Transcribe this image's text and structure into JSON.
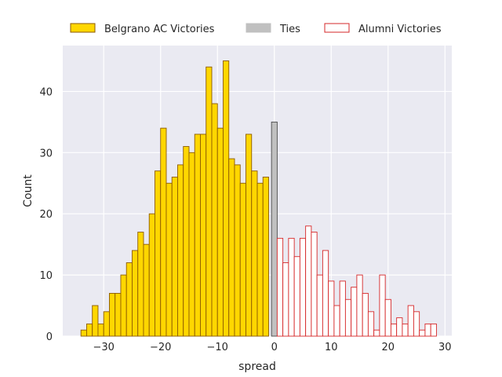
{
  "chart_data": {
    "type": "bar",
    "title": "",
    "xlabel": "spread",
    "ylabel": "Count",
    "xlim": [
      -37.2,
      31.2
    ],
    "ylim": [
      0,
      47.5
    ],
    "x_ticks": [
      -30,
      -20,
      -10,
      0,
      10,
      20,
      30
    ],
    "x_tick_labels": [
      "−30",
      "−20",
      "−10",
      "0",
      "10",
      "20",
      "30"
    ],
    "y_ticks": [
      0,
      10,
      20,
      30,
      40
    ],
    "y_tick_labels": [
      "0",
      "10",
      "20",
      "30",
      "40"
    ],
    "grid": true,
    "legend_position": "top",
    "bin_width": 1,
    "series": [
      {
        "name": "Belgrano AC Victories",
        "fill": "#ffd700",
        "stroke": "#8b5a00",
        "bin_start": -34,
        "values": [
          1,
          2,
          5,
          2,
          4,
          7,
          7,
          10,
          12,
          14,
          17,
          15,
          20,
          27,
          34,
          25,
          26,
          28,
          31,
          30,
          33,
          33,
          44,
          38,
          34,
          45,
          29,
          28,
          25,
          33,
          27,
          25,
          26
        ]
      },
      {
        "name": "Ties",
        "fill": "#c0c0c0",
        "stroke": "#4a4a4a",
        "bin_start": -0.5,
        "values": [
          35
        ]
      },
      {
        "name": "Alumni Victories",
        "fill": "#ffffff",
        "stroke": "#d62728",
        "bin_start": 0.5,
        "values": [
          16,
          12,
          16,
          13,
          16,
          18,
          17,
          10,
          14,
          9,
          5,
          9,
          6,
          8,
          10,
          7,
          4,
          1,
          10,
          6,
          2,
          3,
          2,
          5,
          4,
          1,
          2,
          2
        ]
      }
    ]
  }
}
